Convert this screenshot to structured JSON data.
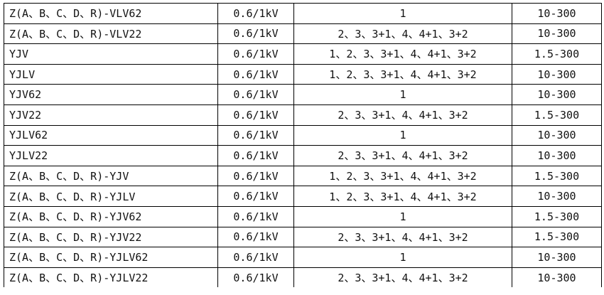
{
  "table": {
    "rows": [
      [
        "Z(A、B、C、D、R)-VLV62",
        "0.6/1kV",
        "1",
        "10-300"
      ],
      [
        "Z(A、B、C、D、R)-VLV22",
        "0.6/1kV",
        "2、3、3+1、4、4+1、3+2",
        "10-300"
      ],
      [
        "YJV",
        "0.6/1kV",
        "1、2、3、3+1、4、4+1、3+2",
        "1.5-300"
      ],
      [
        "YJLV",
        "0.6/1kV",
        "1、2、3、3+1、4、4+1、3+2",
        "10-300"
      ],
      [
        "YJV62",
        "0.6/1kV",
        "1",
        "10-300"
      ],
      [
        "YJV22",
        "0.6/1kV",
        "2、3、3+1、4、4+1、3+2",
        "1.5-300"
      ],
      [
        "YJLV62",
        "0.6/1kV",
        "1",
        "10-300"
      ],
      [
        "YJLV22",
        "0.6/1kV",
        "2、3、3+1、4、4+1、3+2",
        "10-300"
      ],
      [
        "Z(A、B、C、D、R)-YJV",
        "0.6/1kV",
        "1、2、3、3+1、4、4+1、3+2",
        "1.5-300"
      ],
      [
        "Z(A、B、C、D、R)-YJLV",
        "0.6/1kV",
        "1、2、3、3+1、4、4+1、3+2",
        "10-300"
      ],
      [
        "Z(A、B、C、D、R)-YJV62",
        "0.6/1kV",
        "1",
        "1.5-300"
      ],
      [
        "Z(A、B、C、D、R)-YJV22",
        "0.6/1kV",
        "2、3、3+1、4、4+1、3+2",
        "1.5-300"
      ],
      [
        "Z(A、B、C、D、R)-YJLV62",
        "0.6/1kV",
        "1",
        "10-300"
      ],
      [
        "Z(A、B、C、D、R)-YJLV22",
        "0.6/1kV",
        "2、3、3+1、4、4+1、3+2",
        "10-300"
      ]
    ]
  }
}
